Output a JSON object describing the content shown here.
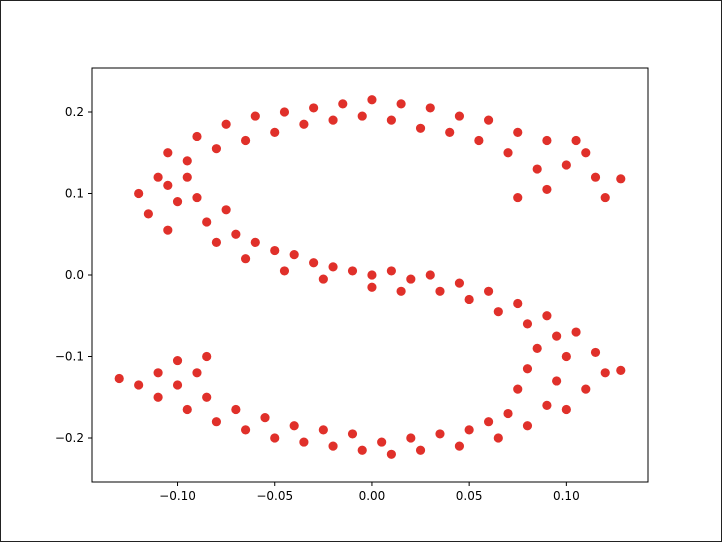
{
  "chart_data": {
    "type": "scatter",
    "color": "#e0302a",
    "xlim": [
      -0.144,
      0.142
    ],
    "ylim": [
      -0.254,
      0.254
    ],
    "xticks": [
      {
        "value": -0.1,
        "label": "−0.10"
      },
      {
        "value": -0.05,
        "label": "−0.05"
      },
      {
        "value": 0,
        "label": "0.00"
      },
      0.05,
      {
        "value": 0.1,
        "label": "0.10"
      }
    ],
    "yticks": [
      {
        "value": -0.2,
        "label": "−0.2"
      },
      {
        "value": -0.1,
        "label": "−0.1"
      },
      {
        "value": 0,
        "label": "0.0"
      },
      0.1,
      0.2
    ],
    "x": [
      0.115,
      0.11,
      0.1,
      0.09,
      0.085,
      0.075,
      0.07,
      0.06,
      0.055,
      0.045,
      0.04,
      0.03,
      0.025,
      0.015,
      0.01,
      0.0,
      -0.005,
      -0.015,
      -0.02,
      -0.03,
      -0.035,
      -0.045,
      -0.05,
      -0.06,
      -0.065,
      -0.075,
      -0.08,
      -0.09,
      -0.095,
      -0.105,
      -0.11,
      -0.12,
      -0.105,
      -0.095,
      -0.115,
      -0.1,
      -0.09,
      -0.105,
      -0.085,
      -0.075,
      -0.08,
      -0.07,
      -0.06,
      -0.065,
      -0.05,
      -0.04,
      -0.045,
      -0.03,
      -0.02,
      -0.025,
      -0.01,
      0.0,
      0.0,
      0.01,
      0.02,
      0.015,
      0.03,
      0.035,
      0.045,
      0.05,
      0.06,
      0.065,
      0.075,
      0.08,
      0.09,
      0.095,
      0.105,
      0.085,
      0.1,
      0.115,
      0.12,
      0.08,
      0.095,
      0.11,
      0.075,
      0.09,
      0.1,
      0.07,
      0.08,
      0.06,
      0.065,
      0.05,
      0.045,
      0.035,
      0.025,
      0.02,
      0.01,
      0.005,
      -0.005,
      -0.01,
      -0.02,
      -0.025,
      -0.035,
      -0.04,
      -0.05,
      -0.055,
      -0.065,
      -0.07,
      -0.08,
      -0.085,
      -0.095,
      -0.1,
      -0.11,
      -0.11,
      -0.12,
      -0.09,
      -0.1,
      -0.085,
      -0.13,
      0.128,
      0.128,
      0.12,
      0.105,
      0.09,
      0.075
    ],
    "y": [
      0.12,
      0.15,
      0.135,
      0.165,
      0.13,
      0.175,
      0.15,
      0.19,
      0.165,
      0.195,
      0.175,
      0.205,
      0.18,
      0.21,
      0.19,
      0.215,
      0.195,
      0.21,
      0.19,
      0.205,
      0.185,
      0.2,
      0.175,
      0.195,
      0.165,
      0.185,
      0.155,
      0.17,
      0.14,
      0.15,
      0.12,
      0.1,
      0.11,
      0.12,
      0.075,
      0.09,
      0.095,
      0.055,
      0.065,
      0.08,
      0.04,
      0.05,
      0.04,
      0.02,
      0.03,
      0.025,
      0.005,
      0.015,
      0.01,
      -0.005,
      0.005,
      0.0,
      -0.015,
      0.005,
      -0.005,
      -0.02,
      0.0,
      -0.02,
      -0.01,
      -0.03,
      -0.02,
      -0.045,
      -0.035,
      -0.06,
      -0.05,
      -0.075,
      -0.07,
      -0.09,
      -0.1,
      -0.095,
      -0.12,
      -0.115,
      -0.13,
      -0.14,
      -0.14,
      -0.16,
      -0.165,
      -0.17,
      -0.185,
      -0.18,
      -0.2,
      -0.19,
      -0.21,
      -0.195,
      -0.215,
      -0.2,
      -0.22,
      -0.205,
      -0.215,
      -0.195,
      -0.21,
      -0.19,
      -0.205,
      -0.185,
      -0.2,
      -0.175,
      -0.19,
      -0.165,
      -0.18,
      -0.15,
      -0.165,
      -0.135,
      -0.15,
      -0.12,
      -0.135,
      -0.12,
      -0.105,
      -0.1,
      -0.127,
      0.118,
      -0.117,
      0.095,
      0.165,
      0.105,
      0.095
    ]
  }
}
